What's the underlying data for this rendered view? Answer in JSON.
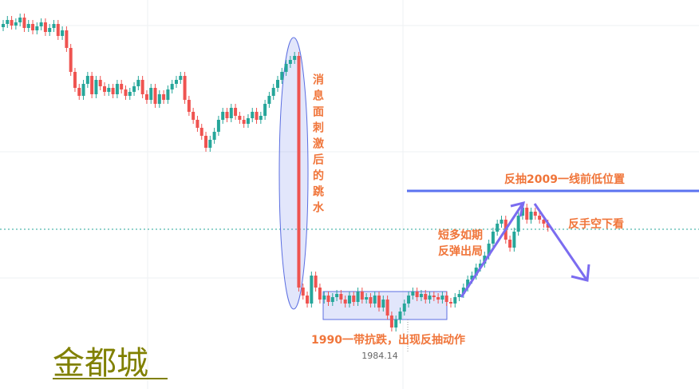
{
  "annotations": {
    "dump_note": "消息面刺激后的跳水",
    "resistance_note": "反抽2009一线前低位置",
    "short_note": "反手空下看",
    "long_note_lines": [
      "短多如期",
      "反弹出局"
    ],
    "support_note": "1990一带抗跌，出现反抽动作"
  },
  "price_label": "1984.14",
  "watermark": "金都城"
}
